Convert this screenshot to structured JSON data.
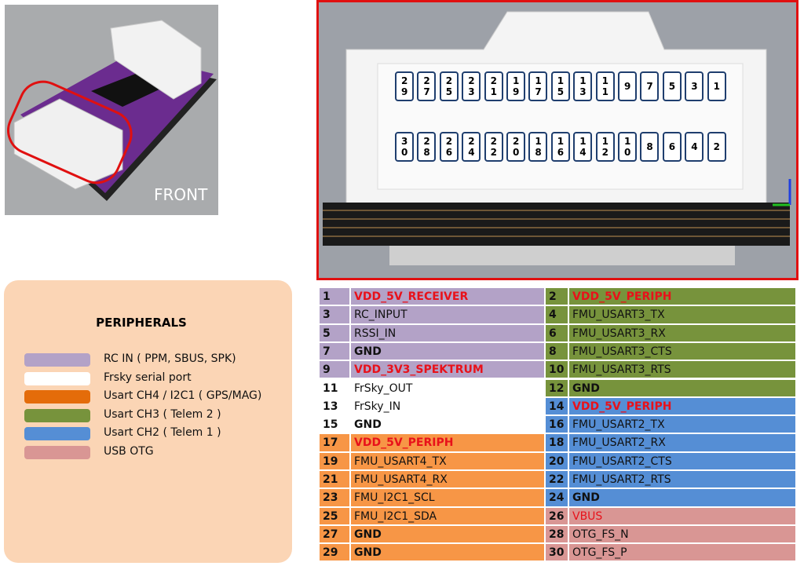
{
  "photo": {
    "label": "FRONT"
  },
  "connector": {
    "top_row": [
      "29",
      "27",
      "25",
      "23",
      "21",
      "19",
      "17",
      "15",
      "13",
      "11",
      "9",
      "7",
      "5",
      "3",
      "1"
    ],
    "bottom_row": [
      "30",
      "28",
      "26",
      "24",
      "22",
      "20",
      "18",
      "16",
      "14",
      "12",
      "10",
      "8",
      "6",
      "4",
      "2"
    ]
  },
  "legend": {
    "title": "PERIPHERALS",
    "items": [
      {
        "label": "RC IN ( PPM, SBUS, SPK)",
        "color": "#b3a2c7"
      },
      {
        "label": "Frsky serial port",
        "color": "#ffffff"
      },
      {
        "label": "Usart CH4 / I2C1 ( GPS/MAG)",
        "color": "#e46c0a"
      },
      {
        "label": "Usart CH3 ( Telem  2 )",
        "color": "#77933c"
      },
      {
        "label": "Usart CH2 ( Telem  1 )",
        "color": "#558ed5"
      },
      {
        "label": "USB OTG",
        "color": "#d99694"
      }
    ]
  },
  "table": {
    "rows": [
      [
        {
          "pin": "1",
          "signal": "VDD_5V_RECEIVER",
          "color": "#b3a2c7",
          "style": "power"
        },
        {
          "pin": "2",
          "signal": "VDD_5V_PERIPH",
          "color": "#77933c",
          "style": "power"
        }
      ],
      [
        {
          "pin": "3",
          "signal": "RC_INPUT",
          "color": "#b3a2c7",
          "style": "normal"
        },
        {
          "pin": "4",
          "signal": "FMU_USART3_TX",
          "color": "#77933c",
          "style": "normal"
        }
      ],
      [
        {
          "pin": "5",
          "signal": "RSSI_IN",
          "color": "#b3a2c7",
          "style": "normal"
        },
        {
          "pin": "6",
          "signal": "FMU_USART3_RX",
          "color": "#77933c",
          "style": "normal"
        }
      ],
      [
        {
          "pin": "7",
          "signal": "GND",
          "color": "#b3a2c7",
          "style": "bold"
        },
        {
          "pin": "8",
          "signal": "FMU_USART3_CTS",
          "color": "#77933c",
          "style": "normal"
        }
      ],
      [
        {
          "pin": "9",
          "signal": "VDD_3V3_SPEKTRUM",
          "color": "#b3a2c7",
          "style": "power"
        },
        {
          "pin": "10",
          "signal": "FMU_USART3_RTS",
          "color": "#77933c",
          "style": "normal"
        }
      ],
      [
        {
          "pin": "11",
          "signal": "FrSky_OUT",
          "color": "#ffffff",
          "style": "normal"
        },
        {
          "pin": "12",
          "signal": "GND",
          "color": "#77933c",
          "style": "bold"
        }
      ],
      [
        {
          "pin": "13",
          "signal": "FrSky_IN",
          "color": "#ffffff",
          "style": "normal"
        },
        {
          "pin": "14",
          "signal": "VDD_5V_PERIPH",
          "color": "#558ed5",
          "style": "power"
        }
      ],
      [
        {
          "pin": "15",
          "signal": "GND",
          "color": "#ffffff",
          "style": "bold"
        },
        {
          "pin": "16",
          "signal": "FMU_USART2_TX",
          "color": "#558ed5",
          "style": "normal"
        }
      ],
      [
        {
          "pin": "17",
          "signal": "VDD_5V_PERIPH",
          "color": "#f79646",
          "style": "power"
        },
        {
          "pin": "18",
          "signal": "FMU_USART2_RX",
          "color": "#558ed5",
          "style": "normal"
        }
      ],
      [
        {
          "pin": "19",
          "signal": "FMU_USART4_TX",
          "color": "#f79646",
          "style": "normal"
        },
        {
          "pin": "20",
          "signal": "FMU_USART2_CTS",
          "color": "#558ed5",
          "style": "normal"
        }
      ],
      [
        {
          "pin": "21",
          "signal": "FMU_USART4_RX",
          "color": "#f79646",
          "style": "normal"
        },
        {
          "pin": "22",
          "signal": "FMU_USART2_RTS",
          "color": "#558ed5",
          "style": "normal"
        }
      ],
      [
        {
          "pin": "23",
          "signal": "FMU_I2C1_SCL",
          "color": "#f79646",
          "style": "normal"
        },
        {
          "pin": "24",
          "signal": "GND",
          "color": "#558ed5",
          "style": "bold"
        }
      ],
      [
        {
          "pin": "25",
          "signal": "FMU_I2C1_SDA",
          "color": "#f79646",
          "style": "normal"
        },
        {
          "pin": "26",
          "signal": "VBUS",
          "color": "#d99694",
          "style": "warning"
        }
      ],
      [
        {
          "pin": "27",
          "signal": "GND",
          "color": "#f79646",
          "style": "bold"
        },
        {
          "pin": "28",
          "signal": "OTG_FS_N",
          "color": "#d99694",
          "style": "normal"
        }
      ],
      [
        {
          "pin": "29",
          "signal": "GND",
          "color": "#f79646",
          "style": "bold"
        },
        {
          "pin": "30",
          "signal": "OTG_FS_P",
          "color": "#d99694",
          "style": "normal"
        }
      ]
    ]
  }
}
